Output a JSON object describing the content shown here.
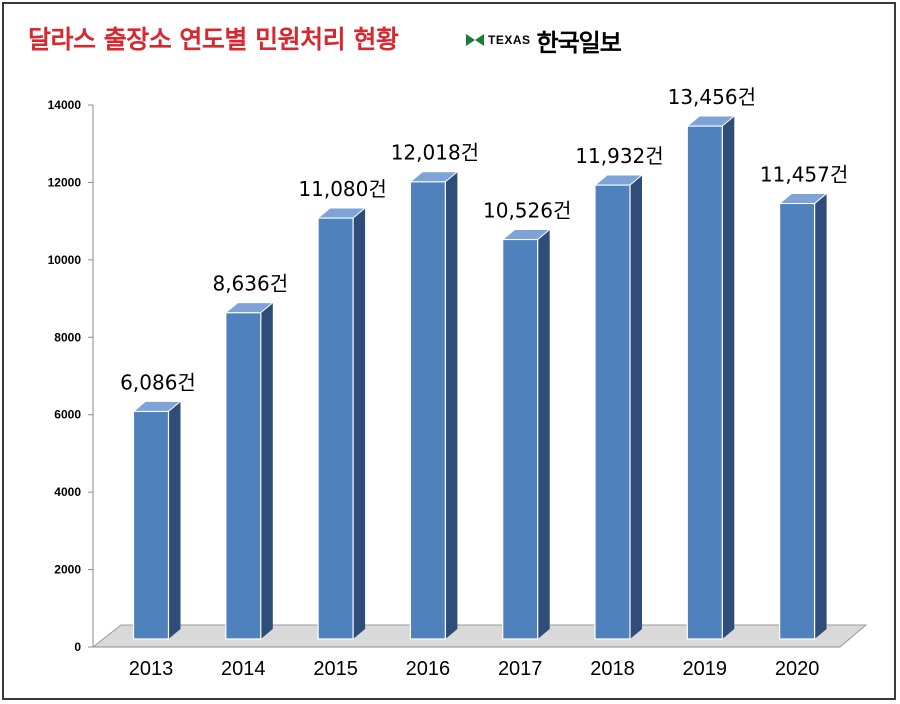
{
  "header": {
    "title": "달라스 출장소 연도별 민원처리 현황",
    "brand_sub": "TEXAS",
    "brand_name": "한국일보"
  },
  "colors": {
    "title": "#d7282f",
    "bar_front": "#4f81bd",
    "bar_side": "#2e4d78",
    "bar_top": "#7ea3d6",
    "floor": "#d9d9d9",
    "brand_green": "#1f7a3a",
    "text": "#000000"
  },
  "chart_data": {
    "type": "bar",
    "categories": [
      "2013",
      "2014",
      "2015",
      "2016",
      "2017",
      "2018",
      "2019",
      "2020"
    ],
    "values": [
      6086,
      8636,
      11080,
      12018,
      10526,
      11932,
      13456,
      11457
    ],
    "data_labels": [
      "6,086건",
      "8,636건",
      "11,080건",
      "12,018건",
      "10,526건",
      "11,932건",
      "13,456건",
      "11,457건"
    ],
    "title": "달라스 출장소 연도별 민원처리 현황",
    "xlabel": "",
    "ylabel": "",
    "ylim": [
      0,
      14000
    ],
    "yticks": [
      0,
      2000,
      4000,
      6000,
      8000,
      10000,
      12000,
      14000
    ],
    "ytick_labels": [
      "0",
      "2000",
      "4000",
      "6000",
      "8000",
      "10000",
      "12000",
      "14000"
    ],
    "grid": false,
    "legend": "none"
  }
}
